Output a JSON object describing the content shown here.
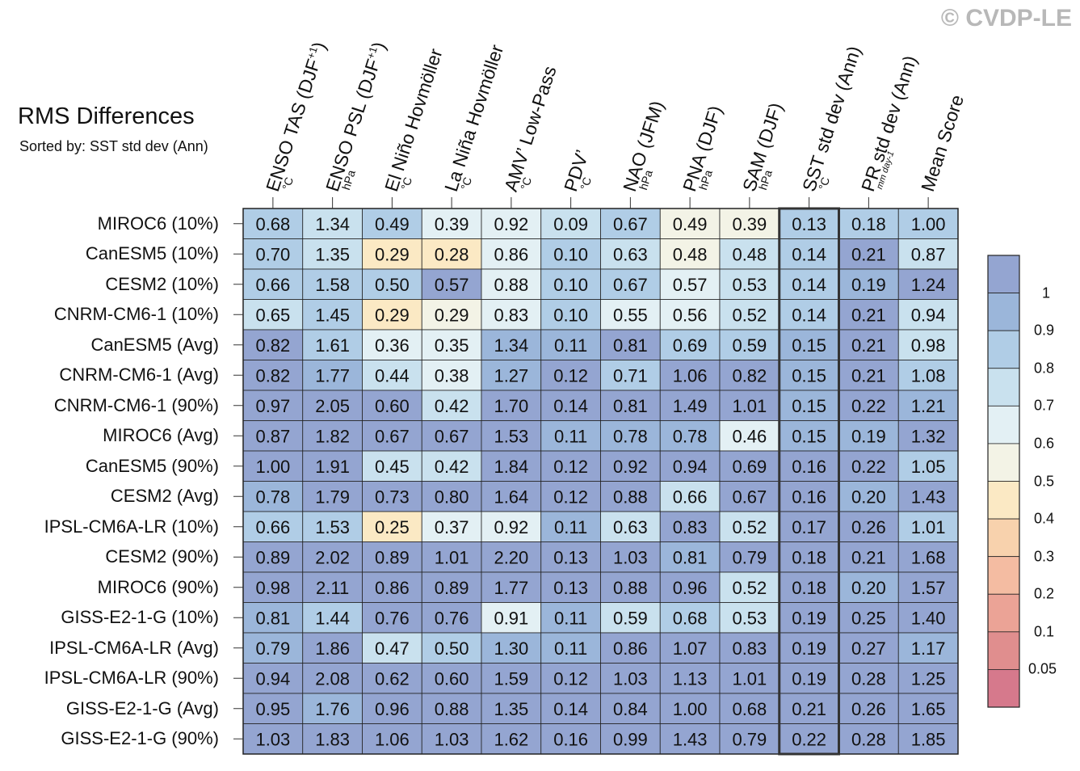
{
  "copyright": "© CVDP-LE",
  "chart_data": {
    "type": "heatmap",
    "title": "RMS Differences",
    "subtitle": "Sorted by: SST std dev (Ann)",
    "columns": [
      {
        "label": "ENSO TAS (DJF+1)",
        "main": "ENSO TAS (DJF",
        "sup": "+1",
        "close": ")",
        "unit": "°C"
      },
      {
        "label": "ENSO PSL (DJF+1)",
        "main": "ENSO PSL (DJF",
        "sup": "+1",
        "close": ")",
        "unit": "hPa"
      },
      {
        "label": "El Niño Hovmöller",
        "main": "El Niño Hovmöller",
        "unit": "°C"
      },
      {
        "label": "La Niña Hovmöller",
        "main": "La Niña Hovmöller",
        "unit": "°C"
      },
      {
        "label": "AMV' Low-Pass",
        "main": "AMV’ Low-Pass",
        "unit": "°C"
      },
      {
        "label": "PDV'",
        "main": "PDV’",
        "unit": "°C"
      },
      {
        "label": "NAO (JFM)",
        "main": "NAO (JFM)",
        "unit": "hPa"
      },
      {
        "label": "PNA (DJF)",
        "main": "PNA (DJF)",
        "unit": "hPa"
      },
      {
        "label": "SAM (DJF)",
        "main": "SAM (DJF)",
        "unit": "hPa"
      },
      {
        "label": "SST std dev (Ann)",
        "main": "SST std dev (Ann)",
        "unit": "°C"
      },
      {
        "label": "PR std dev (Ann)",
        "main": "PR std dev (Ann)",
        "unit": "mm day-1",
        "unit_small": true
      },
      {
        "label": "Mean Score",
        "main": "Mean Score",
        "unit": ""
      }
    ],
    "rows": [
      "MIROC6 (10%)",
      "CanESM5 (10%)",
      "CESM2 (10%)",
      "CNRM-CM6-1 (10%)",
      "CanESM5 (Avg)",
      "CNRM-CM6-1 (Avg)",
      "CNRM-CM6-1 (90%)",
      "MIROC6 (Avg)",
      "CanESM5 (90%)",
      "CESM2 (Avg)",
      "IPSL-CM6A-LR (10%)",
      "CESM2 (90%)",
      "MIROC6 (90%)",
      "GISS-E2-1-G (10%)",
      "IPSL-CM6A-LR (Avg)",
      "IPSL-CM6A-LR (90%)",
      "GISS-E2-1-G (Avg)",
      "GISS-E2-1-G (90%)"
    ],
    "values": [
      [
        "0.68",
        "1.34",
        "0.49",
        "0.39",
        "0.92",
        "0.09",
        "0.67",
        "0.49",
        "0.39",
        "0.13",
        "0.18",
        "1.00"
      ],
      [
        "0.70",
        "1.35",
        "0.29",
        "0.28",
        "0.86",
        "0.10",
        "0.63",
        "0.48",
        "0.48",
        "0.14",
        "0.21",
        "0.87"
      ],
      [
        "0.66",
        "1.58",
        "0.50",
        "0.57",
        "0.88",
        "0.10",
        "0.67",
        "0.57",
        "0.53",
        "0.14",
        "0.19",
        "1.24"
      ],
      [
        "0.65",
        "1.45",
        "0.29",
        "0.29",
        "0.83",
        "0.10",
        "0.55",
        "0.56",
        "0.52",
        "0.14",
        "0.21",
        "0.94"
      ],
      [
        "0.82",
        "1.61",
        "0.36",
        "0.35",
        "1.34",
        "0.11",
        "0.81",
        "0.69",
        "0.59",
        "0.15",
        "0.21",
        "0.98"
      ],
      [
        "0.82",
        "1.77",
        "0.44",
        "0.38",
        "1.27",
        "0.12",
        "0.71",
        "1.06",
        "0.82",
        "0.15",
        "0.21",
        "1.08"
      ],
      [
        "0.97",
        "2.05",
        "0.60",
        "0.42",
        "1.70",
        "0.14",
        "0.81",
        "1.49",
        "1.01",
        "0.15",
        "0.22",
        "1.21"
      ],
      [
        "0.87",
        "1.82",
        "0.67",
        "0.67",
        "1.53",
        "0.11",
        "0.78",
        "0.78",
        "0.46",
        "0.15",
        "0.19",
        "1.32"
      ],
      [
        "1.00",
        "1.91",
        "0.45",
        "0.42",
        "1.84",
        "0.12",
        "0.92",
        "0.94",
        "0.69",
        "0.16",
        "0.22",
        "1.05"
      ],
      [
        "0.78",
        "1.79",
        "0.73",
        "0.80",
        "1.64",
        "0.12",
        "0.88",
        "0.66",
        "0.67",
        "0.16",
        "0.20",
        "1.43"
      ],
      [
        "0.66",
        "1.53",
        "0.25",
        "0.37",
        "0.92",
        "0.11",
        "0.63",
        "0.83",
        "0.52",
        "0.17",
        "0.26",
        "1.01"
      ],
      [
        "0.89",
        "2.02",
        "0.89",
        "1.01",
        "2.20",
        "0.13",
        "1.03",
        "0.81",
        "0.79",
        "0.18",
        "0.21",
        "1.68"
      ],
      [
        "0.98",
        "2.11",
        "0.86",
        "0.89",
        "1.77",
        "0.13",
        "0.88",
        "0.96",
        "0.52",
        "0.18",
        "0.20",
        "1.57"
      ],
      [
        "0.81",
        "1.44",
        "0.76",
        "0.76",
        "0.91",
        "0.11",
        "0.59",
        "0.68",
        "0.53",
        "0.19",
        "0.25",
        "1.40"
      ],
      [
        "0.79",
        "1.86",
        "0.47",
        "0.50",
        "1.30",
        "0.11",
        "0.86",
        "1.07",
        "0.83",
        "0.19",
        "0.27",
        "1.17"
      ],
      [
        "0.94",
        "2.08",
        "0.62",
        "0.60",
        "1.59",
        "0.12",
        "1.03",
        "1.13",
        "1.01",
        "0.19",
        "0.28",
        "1.25"
      ],
      [
        "0.95",
        "1.76",
        "0.96",
        "0.88",
        "1.35",
        "0.14",
        "0.84",
        "1.00",
        "0.68",
        "0.21",
        "0.26",
        "1.65"
      ],
      [
        "1.03",
        "1.83",
        "1.06",
        "1.03",
        "1.62",
        "0.16",
        "0.99",
        "1.43",
        "0.79",
        "0.22",
        "0.28",
        "1.85"
      ]
    ],
    "highlight_column": "SST std dev (Ann)",
    "colorbar": {
      "bounds": [
        0.05,
        0.1,
        0.2,
        0.3,
        0.4,
        0.5,
        0.6,
        0.7,
        0.8,
        0.9,
        1
      ],
      "tick_labels": [
        "1",
        "0.9",
        "0.8",
        "0.7",
        "0.6",
        "0.5",
        "0.4",
        "0.3",
        "0.2",
        "0.1",
        "0.05"
      ],
      "colors": [
        "#d6798c",
        "#e08e8e",
        "#eba396",
        "#f4bca2",
        "#f8d2ad",
        "#fbe9c4",
        "#f3f3e6",
        "#e3f0f4",
        "#c9e1ee",
        "#b0cde6",
        "#9bb6da",
        "#94a5d1"
      ]
    }
  }
}
